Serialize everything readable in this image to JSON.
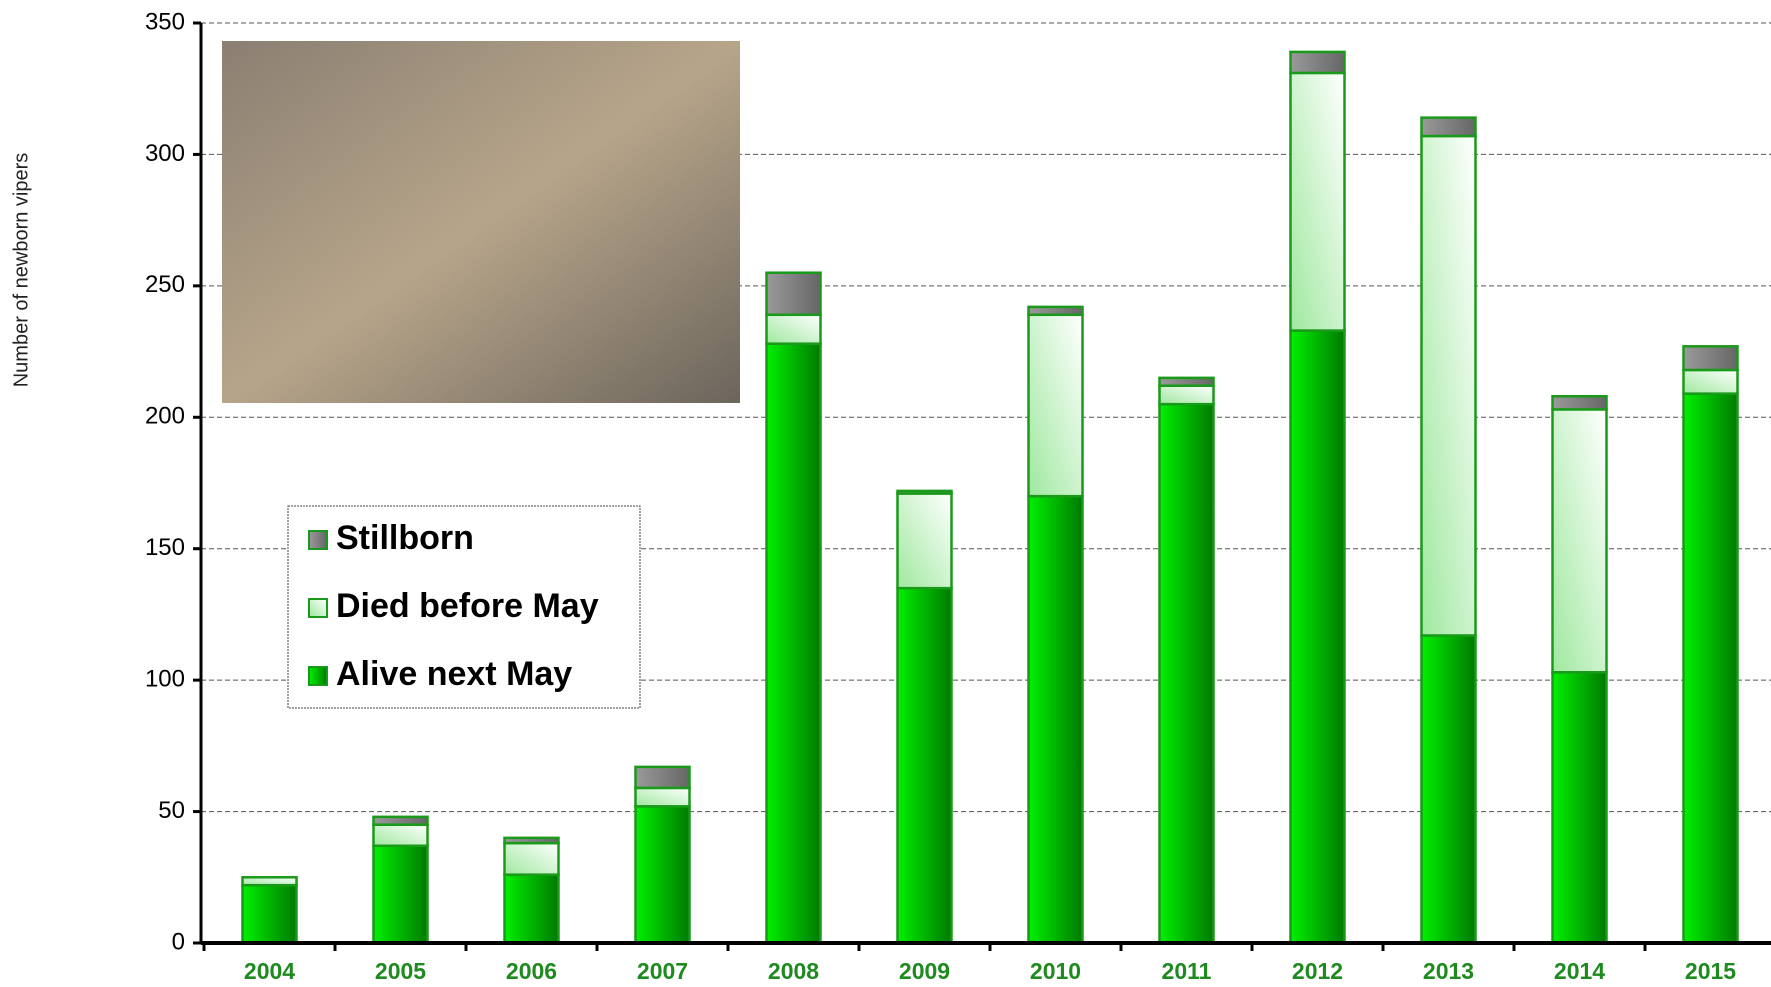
{
  "chart_data": {
    "type": "stacked_bar",
    "y_label": "Number of newborn vipers",
    "categories": [
      "2004",
      "2005",
      "2006",
      "2007",
      "2008",
      "2009",
      "2010",
      "2011",
      "2012",
      "2013",
      "2014",
      "2015"
    ],
    "series": [
      {
        "name": "Alive next May",
        "color": "#00c800",
        "values": [
          22,
          37,
          26,
          52,
          228,
          135,
          170,
          205,
          233,
          117,
          103,
          209
        ]
      },
      {
        "name": "Died before May",
        "color": "#c8f5c8",
        "values": [
          3,
          8,
          12,
          7,
          11,
          36,
          69,
          7,
          98,
          190,
          100,
          9
        ]
      },
      {
        "name": "Stillborn",
        "color": "#808080",
        "values": [
          0,
          3,
          2,
          8,
          16,
          1,
          3,
          3,
          8,
          7,
          5,
          9
        ]
      }
    ],
    "ylim": [
      0,
      350
    ],
    "yticks": [
      0,
      50,
      100,
      150,
      200,
      250,
      300,
      350
    ],
    "grid": true
  }
}
